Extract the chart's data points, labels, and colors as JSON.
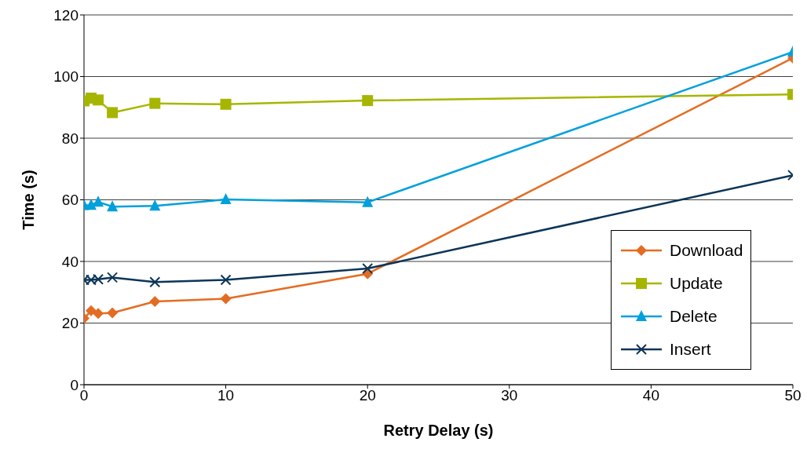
{
  "chart_data": {
    "type": "line",
    "xlabel": "Retry Delay (s)",
    "ylabel": "Time (s)",
    "x": [
      0,
      0.5,
      1,
      2,
      5,
      10,
      20,
      50
    ],
    "series": [
      {
        "name": "Download",
        "color": "#e46c22",
        "marker": "diamond",
        "values": [
          21.5,
          24,
          23.1,
          23.3,
          27,
          27.9,
          36,
          106
        ]
      },
      {
        "name": "Update",
        "color": "#a6b600",
        "marker": "square",
        "values": [
          92.1,
          93,
          92.4,
          88.3,
          91.3,
          91,
          92.2,
          94.2
        ]
      },
      {
        "name": "Delete",
        "color": "#00a0dc",
        "marker": "triangle",
        "values": [
          58.2,
          58.3,
          59.3,
          57.8,
          58,
          60.1,
          59.2,
          108
        ]
      },
      {
        "name": "Insert",
        "color": "#0c3558",
        "marker": "cross",
        "values": [
          34,
          34,
          34.2,
          34.8,
          33.3,
          34,
          37.7,
          68
        ]
      }
    ],
    "xlim": [
      0,
      50
    ],
    "xticks": [
      0,
      10,
      20,
      30,
      40,
      50
    ],
    "ylim": [
      0,
      120
    ],
    "yticks": [
      0,
      20,
      40,
      60,
      80,
      100,
      120
    ],
    "grid": "y",
    "legend": "bottom right"
  }
}
